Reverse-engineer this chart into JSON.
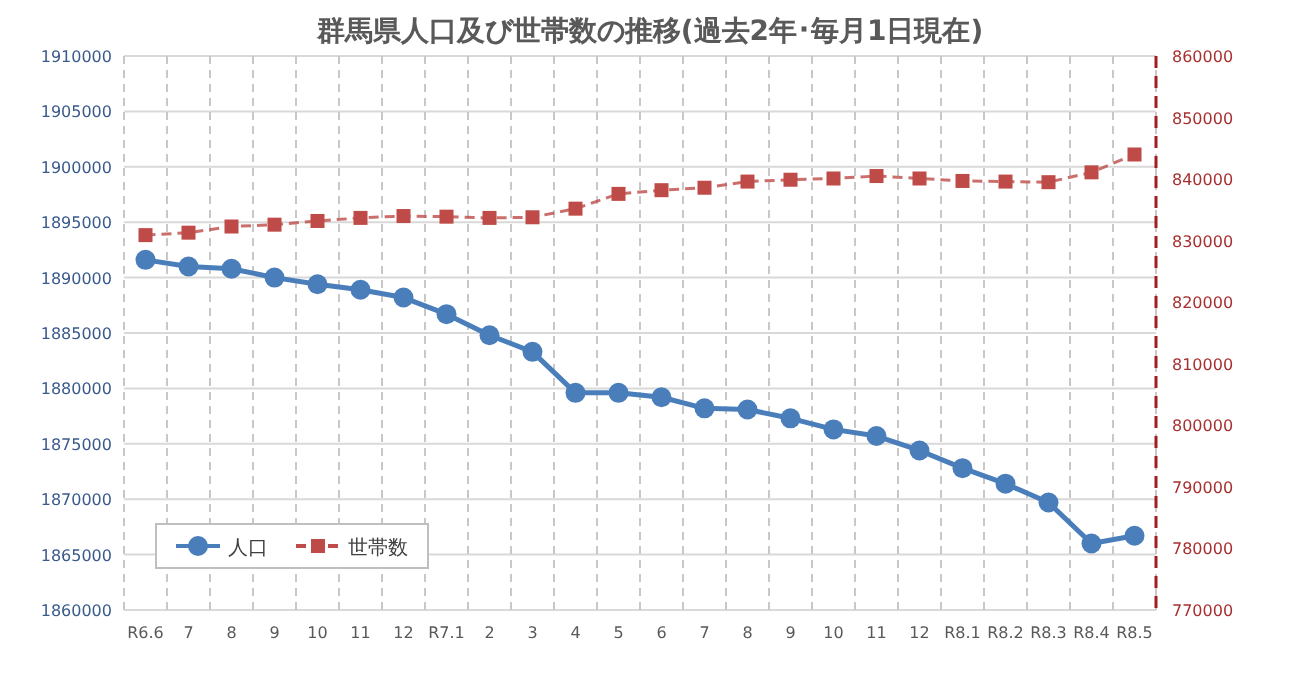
{
  "chart_data": {
    "type": "line",
    "title": "群馬県人口及び世帯数の推移(過去2年･毎月1日現在)",
    "categories": [
      "R6.6",
      "7",
      "8",
      "9",
      "10",
      "11",
      "12",
      "R7.1",
      "2",
      "3",
      "4",
      "5",
      "6",
      "7",
      "8",
      "9",
      "10",
      "11",
      "12",
      "R8.1",
      "R8.2",
      "R8.3",
      "R8.4",
      "R8.5"
    ],
    "series": [
      {
        "name": "人口",
        "color": "#4a7ebb",
        "marker": "circle",
        "line_style": "solid",
        "values": [
          1891600,
          1891000,
          1890800,
          1890000,
          1889400,
          1888900,
          1888200,
          1886700,
          1884800,
          1883300,
          1879600,
          1879600,
          1879200,
          1878200,
          1878100,
          1877300,
          1876300,
          1875700,
          1874400,
          1872800,
          1871400,
          1869700,
          1866000,
          1866700
        ]
      },
      {
        "name": "世帯数",
        "color": "#be4b48",
        "marker": "square",
        "line_style": "dashed",
        "axis": "y2",
        "values": [
          830900,
          831300,
          832300,
          832600,
          833200,
          833700,
          834000,
          833900,
          833700,
          833800,
          835200,
          837600,
          838200,
          838600,
          839600,
          839900,
          840100,
          840500,
          840100,
          839700,
          839600,
          839500,
          841100,
          844000
        ]
      }
    ],
    "ylim": [
      1860000,
      1910000
    ],
    "yticks": [
      1860000,
      1865000,
      1870000,
      1875000,
      1880000,
      1885000,
      1890000,
      1895000,
      1900000,
      1905000,
      1910000
    ],
    "y2lim": [
      770000,
      860000
    ],
    "y2ticks": [
      770000,
      780000,
      790000,
      800000,
      810000,
      820000,
      830000,
      840000,
      850000,
      860000
    ],
    "grid": true,
    "legend": "bottom left"
  }
}
